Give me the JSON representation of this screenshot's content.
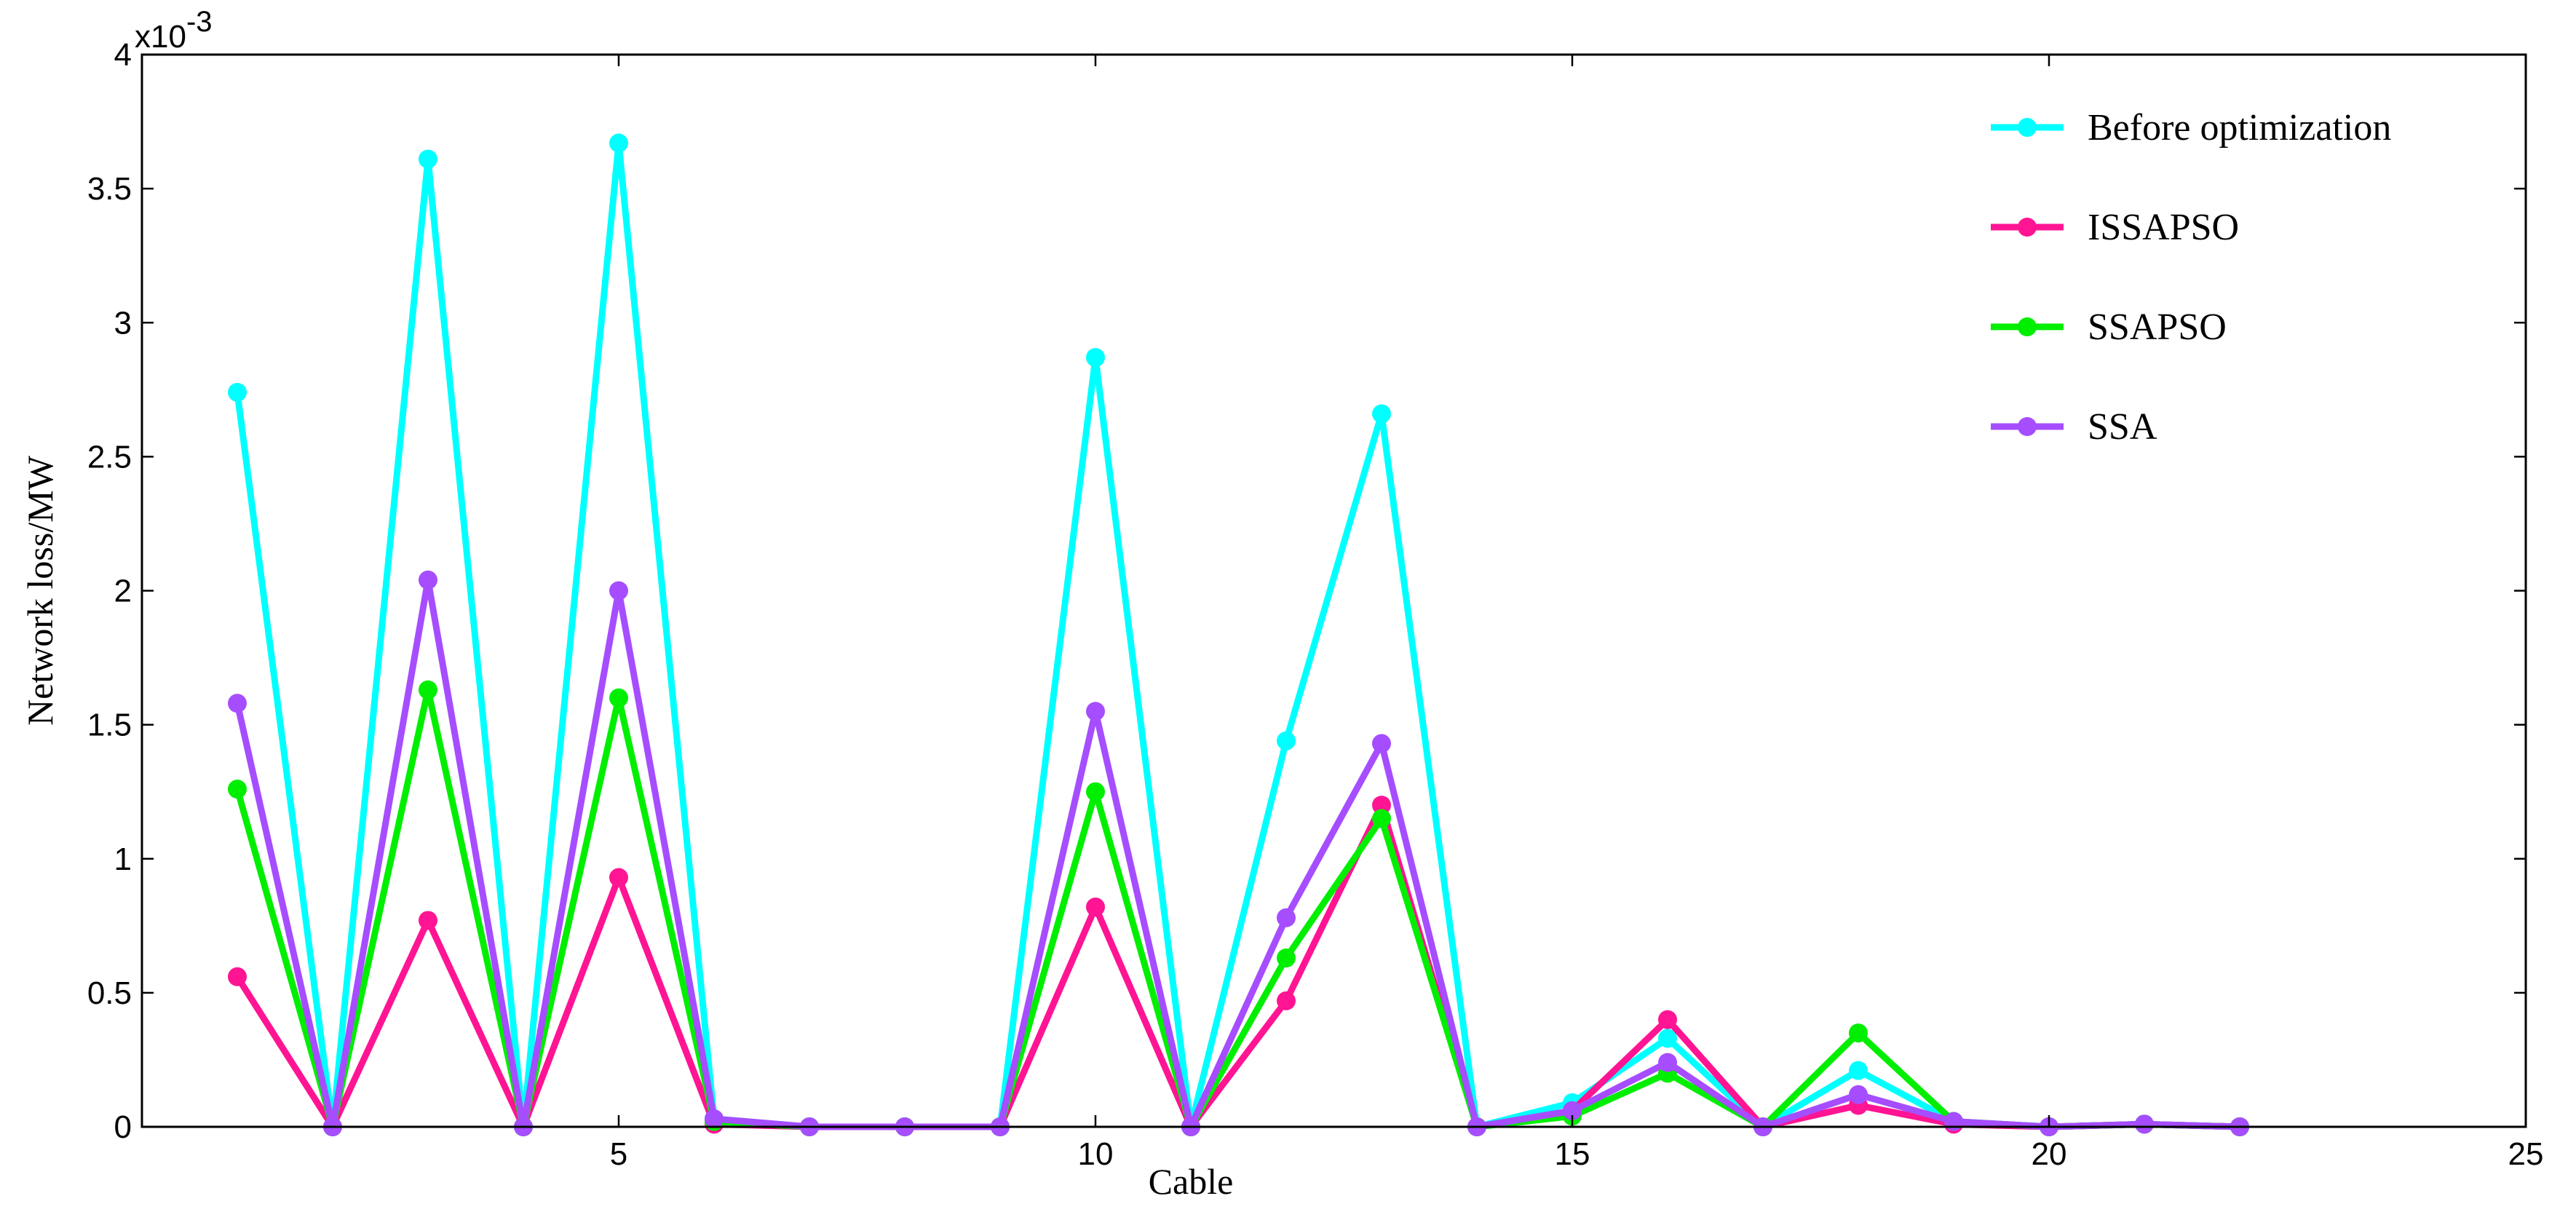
{
  "chart_data": {
    "type": "line",
    "xlabel": "Cable",
    "ylabel": "Network loss/MW",
    "y_exponent_label": "x10",
    "y_exponent_power": "-3",
    "xlim": [
      0,
      25
    ],
    "ylim": [
      0,
      4
    ],
    "xticks": [
      5,
      10,
      15,
      20,
      25
    ],
    "xtick_labels": [
      "5",
      "10",
      "15",
      "20",
      "25"
    ],
    "yticks": [
      0,
      0.5,
      1,
      1.5,
      2,
      2.5,
      3,
      3.5,
      4
    ],
    "ytick_labels": [
      "0",
      "0.5",
      "1",
      "1.5",
      "2",
      "2.5",
      "3",
      "3.5",
      "4"
    ],
    "grid": false,
    "legend_position": "top-right",
    "x": [
      1,
      2,
      3,
      4,
      5,
      6,
      7,
      8,
      9,
      10,
      11,
      12,
      13,
      14,
      15,
      16,
      17,
      18,
      19,
      20,
      21,
      22
    ],
    "series": [
      {
        "name": "Before optimization",
        "color": "#00ffff",
        "values": [
          2.74,
          0.0,
          3.61,
          0.0,
          3.67,
          0.03,
          0.0,
          0.0,
          0.0,
          2.87,
          0.0,
          1.44,
          2.66,
          0.0,
          0.09,
          0.33,
          0.0,
          0.21,
          0.02,
          0.0,
          0.01,
          0.0
        ]
      },
      {
        "name": "ISSAPSO",
        "color": "#ff1493",
        "values": [
          0.56,
          0.0,
          0.77,
          0.0,
          0.93,
          0.01,
          0.0,
          0.0,
          0.0,
          0.82,
          0.0,
          0.47,
          1.2,
          0.0,
          0.06,
          0.4,
          0.0,
          0.08,
          0.01,
          0.0,
          0.01,
          0.0
        ]
      },
      {
        "name": "SSAPSO",
        "color": "#00ee00",
        "values": [
          1.26,
          0.0,
          1.63,
          0.0,
          1.6,
          0.02,
          0.0,
          0.0,
          0.0,
          1.25,
          0.0,
          0.63,
          1.15,
          0.0,
          0.04,
          0.2,
          0.0,
          0.35,
          0.02,
          0.0,
          0.01,
          0.0
        ]
      },
      {
        "name": "SSA",
        "color": "#a64dff",
        "values": [
          1.58,
          0.0,
          2.04,
          0.0,
          2.0,
          0.03,
          0.0,
          0.0,
          0.0,
          1.55,
          0.0,
          0.78,
          1.43,
          0.0,
          0.06,
          0.24,
          0.0,
          0.12,
          0.02,
          0.0,
          0.01,
          0.0
        ]
      }
    ]
  }
}
